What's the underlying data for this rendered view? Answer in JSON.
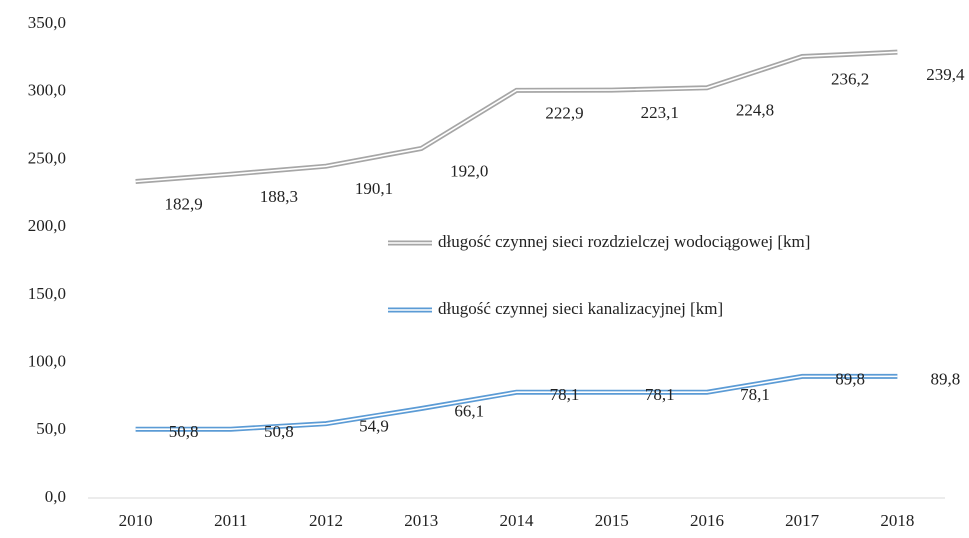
{
  "chart_data": {
    "type": "line",
    "stacked": true,
    "categories": [
      "2010",
      "2011",
      "2012",
      "2013",
      "2014",
      "2015",
      "2016",
      "2017",
      "2018"
    ],
    "series": [
      {
        "name": "długość czynnej sieci kanalizacyjnej [km]",
        "color": "#5b9bd5",
        "values": [
          50.8,
          50.8,
          54.9,
          66.1,
          78.1,
          78.1,
          78.1,
          89.8,
          89.8
        ],
        "value_labels": [
          "50,8",
          "50,8",
          "54,9",
          "66,1",
          "78,1",
          "78,1",
          "78,1",
          "89,8",
          "89,8"
        ]
      },
      {
        "name": "długość czynnej sieci rozdzielczej wodociągowej [km]",
        "color": "#a6a6a6",
        "values": [
          182.9,
          188.3,
          190.1,
          192.0,
          222.9,
          223.1,
          224.8,
          236.2,
          239.4
        ],
        "value_labels": [
          "182,9",
          "188,3",
          "190,1",
          "192,0",
          "222,9",
          "223,1",
          "224,8",
          "236,2",
          "239,4"
        ]
      }
    ],
    "ylim": [
      0,
      350
    ],
    "yticks": [
      {
        "value": 0,
        "label": "0,0"
      },
      {
        "value": 50,
        "label": "50,0"
      },
      {
        "value": 100,
        "label": "100,0"
      },
      {
        "value": 150,
        "label": "150,0"
      },
      {
        "value": 200,
        "label": "200,0"
      },
      {
        "value": 250,
        "label": "250,0"
      },
      {
        "value": 300,
        "label": "300,0"
      },
      {
        "value": 350,
        "label": "350,0"
      }
    ],
    "grid": false
  }
}
